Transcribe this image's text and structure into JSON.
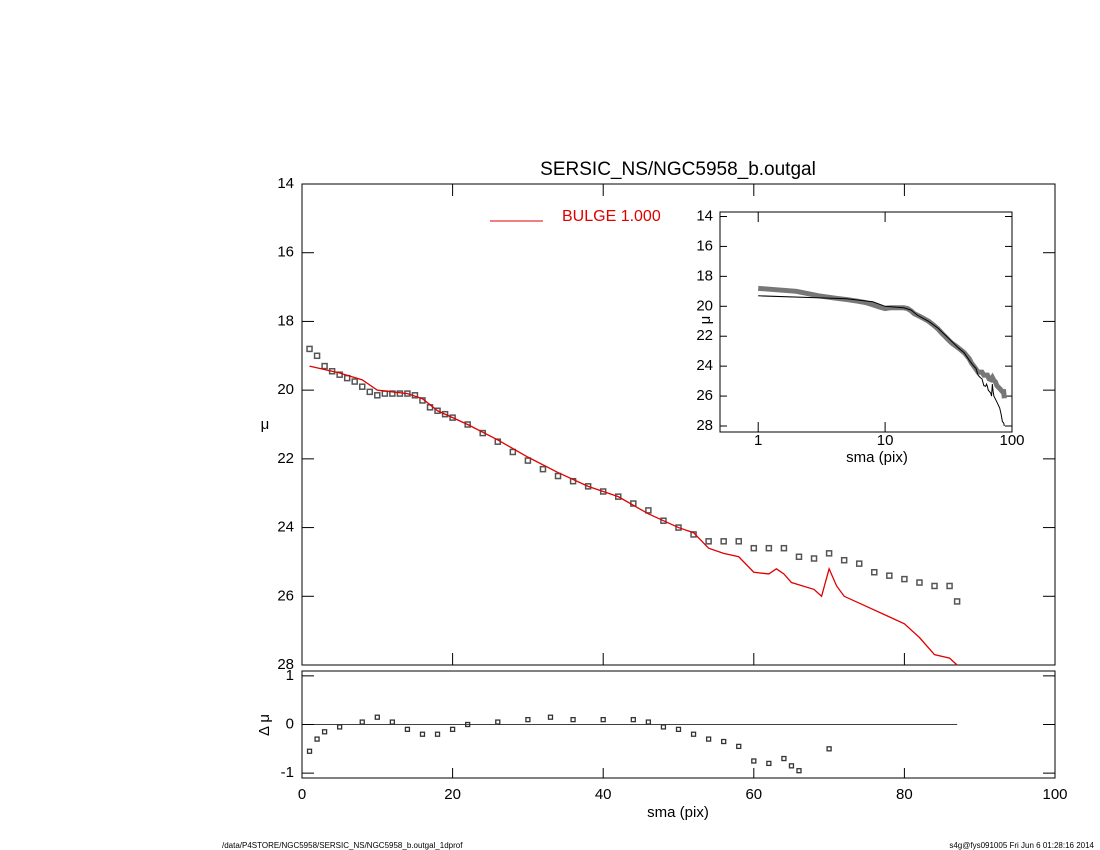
{
  "chart_data": [
    {
      "type": "scatter",
      "title": "SERSIC_NS/NGC5958_b.outgal",
      "ylabel": "μ",
      "xlim": [
        0,
        100
      ],
      "xticks": [
        0,
        20,
        40,
        60,
        80,
        100
      ],
      "ylim": [
        14,
        28
      ],
      "yticks": [
        14,
        16,
        18,
        20,
        22,
        24,
        26,
        28
      ],
      "inverted": true,
      "series": [
        {
          "name": "data",
          "color": "#555555",
          "x": [
            1,
            2,
            3,
            4,
            5,
            6,
            7,
            8,
            9,
            10,
            11,
            12,
            13,
            14,
            15,
            16,
            17,
            18,
            19,
            20,
            22,
            24,
            26,
            28,
            30,
            32,
            34,
            36,
            38,
            40,
            42,
            44,
            46,
            48,
            50,
            52,
            54,
            56,
            58,
            60,
            62,
            64,
            66,
            68,
            70,
            72,
            74,
            76,
            78,
            80,
            82,
            84,
            86,
            87
          ],
          "values": [
            18.8,
            19.0,
            19.3,
            19.45,
            19.55,
            19.65,
            19.75,
            19.9,
            20.05,
            20.15,
            20.1,
            20.1,
            20.1,
            20.1,
            20.15,
            20.3,
            20.5,
            20.6,
            20.7,
            20.8,
            21.0,
            21.25,
            21.5,
            21.8,
            22.05,
            22.3,
            22.5,
            22.65,
            22.8,
            22.95,
            23.1,
            23.3,
            23.5,
            23.8,
            24.0,
            24.2,
            24.4,
            24.4,
            24.4,
            24.6,
            24.6,
            24.6,
            24.85,
            24.9,
            24.75,
            24.95,
            25.05,
            25.3,
            25.4,
            25.5,
            25.6,
            25.7,
            25.7,
            26.15
          ]
        },
        {
          "name": "BULGE  1.000",
          "color": "#e00000",
          "x": [
            1,
            5,
            8,
            10,
            14,
            16,
            18,
            22,
            26,
            30,
            34,
            38,
            42,
            46,
            50,
            52,
            54,
            56,
            58,
            60,
            62,
            63,
            64,
            65,
            68,
            69,
            70,
            71,
            72,
            75,
            78,
            80,
            82,
            84,
            86,
            87
          ],
          "values": [
            19.3,
            19.5,
            19.7,
            20.0,
            20.1,
            20.25,
            20.6,
            21.0,
            21.45,
            21.95,
            22.4,
            22.8,
            23.1,
            23.6,
            24.0,
            24.15,
            24.6,
            24.75,
            24.85,
            25.3,
            25.35,
            25.2,
            25.35,
            25.6,
            25.8,
            26.0,
            25.2,
            25.7,
            26.0,
            26.3,
            26.6,
            26.8,
            27.2,
            27.7,
            27.8,
            28.0
          ]
        }
      ]
    },
    {
      "type": "line",
      "xlabel": "sma (pix)",
      "ylabel": "μ",
      "xlog": true,
      "xlim": [
        0.5,
        100
      ],
      "xticks": [
        1,
        10,
        100
      ],
      "ylim": [
        13.7,
        28.4
      ],
      "yticks": [
        14,
        16,
        18,
        20,
        22,
        24,
        26,
        28
      ],
      "inverted": true,
      "model_color": "#000000",
      "data_color": "#777777"
    },
    {
      "type": "scatter",
      "xlabel": "sma (pix)",
      "ylabel": "Δ μ",
      "xlim": [
        0,
        100
      ],
      "xticks": [
        0,
        20,
        40,
        60,
        80,
        100
      ],
      "ylim": [
        -1.1,
        1.1
      ],
      "yticks": [
        -1,
        0,
        1
      ],
      "zero_line_end": 87,
      "series": [
        {
          "name": "residual",
          "color": "#333333",
          "x": [
            1,
            2,
            3,
            5,
            8,
            10,
            12,
            14,
            16,
            18,
            20,
            22,
            26,
            30,
            33,
            36,
            40,
            44,
            46,
            48,
            50,
            52,
            54,
            56,
            58,
            60,
            62,
            64,
            65,
            66,
            70
          ],
          "values": [
            -0.55,
            -0.3,
            -0.15,
            -0.05,
            0.05,
            0.15,
            0.05,
            -0.1,
            -0.2,
            -0.2,
            -0.1,
            0,
            0.05,
            0.1,
            0.15,
            0.1,
            0.1,
            0.1,
            0.05,
            -0.05,
            -0.1,
            -0.2,
            -0.3,
            -0.35,
            -0.45,
            -0.75,
            -0.8,
            -0.7,
            -0.85,
            -0.95,
            -0.5
          ]
        }
      ]
    }
  ],
  "footer_left": "/data/P4STORE/NGC5958/SERSIC_NS/NGC5958_b.outgal_1dprof",
  "footer_right": "s4g@fys091005  Fri Jun  6 01:28:16 2014"
}
